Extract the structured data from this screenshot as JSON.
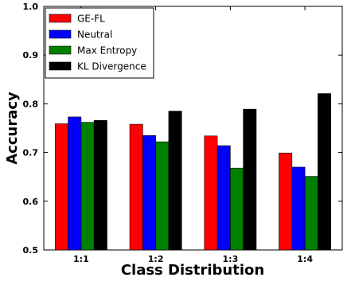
{
  "chart_data": {
    "type": "bar",
    "title": "",
    "xlabel": "Class Distribution",
    "ylabel": "Accuracy",
    "categories": [
      "1:1",
      "1:2",
      "1:3",
      "1:4"
    ],
    "ylim": [
      0.5,
      1.0
    ],
    "yticks": [
      "0.5",
      "0.6",
      "0.7",
      "0.8",
      "0.9",
      "1.0"
    ],
    "grid": false,
    "legend_position": "top-left",
    "series": [
      {
        "name": "GE-FL",
        "color": "#ff0000",
        "values": [
          0.759,
          0.758,
          0.734,
          0.699
        ]
      },
      {
        "name": "Neutral",
        "color": "#0000ff",
        "values": [
          0.773,
          0.735,
          0.714,
          0.67
        ]
      },
      {
        "name": "Max Entropy",
        "color": "#008000",
        "values": [
          0.762,
          0.722,
          0.668,
          0.651
        ]
      },
      {
        "name": "KL Divergence",
        "color": "#000000",
        "values": [
          0.766,
          0.785,
          0.789,
          0.821
        ]
      }
    ]
  }
}
